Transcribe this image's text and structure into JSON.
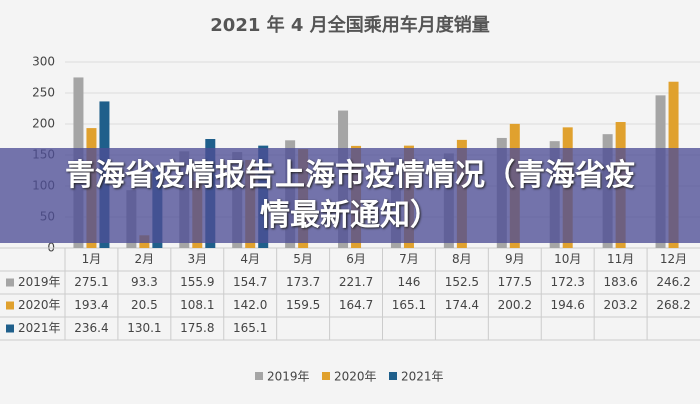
{
  "chart_data": {
    "type": "bar",
    "title": "2021 年 4 月全国乘用车月度销量",
    "overlay_title": "青海省疫情报告上海市疫情情况（青海省疫情最新通知）",
    "categories": [
      "1月",
      "2月",
      "3月",
      "4月",
      "5月",
      "6月",
      "7月",
      "8月",
      "9月",
      "10月",
      "11月",
      "12月"
    ],
    "series": [
      {
        "name": "2019年",
        "color": "#a5a5a5",
        "values": [
          275.1,
          93.3,
          155.9,
          154.7,
          173.7,
          221.7,
          146,
          152.5,
          177.5,
          172.3,
          183.6,
          246.2
        ]
      },
      {
        "name": "2020年",
        "color": "#e0a12e",
        "values": [
          193.4,
          20.5,
          108.1,
          142.0,
          159.5,
          164.7,
          165.1,
          174.4,
          200.2,
          194.6,
          203.2,
          268.2
        ],
        "value_labels": [
          "193.4",
          "20.5",
          "108.1",
          "142.0",
          "159.5",
          "164.7",
          "165.1",
          "174.4",
          "200.2",
          "194.6",
          "203.2",
          "268.2"
        ]
      },
      {
        "name": "2021年",
        "color": "#1f5f8b",
        "values": [
          236.4,
          130.1,
          175.8,
          165.1,
          null,
          null,
          null,
          null,
          null,
          null,
          null,
          null
        ]
      }
    ],
    "ylim": [
      0,
      300
    ],
    "yticks": [
      0,
      50,
      100,
      150,
      200,
      250,
      300
    ],
    "grid": true
  }
}
